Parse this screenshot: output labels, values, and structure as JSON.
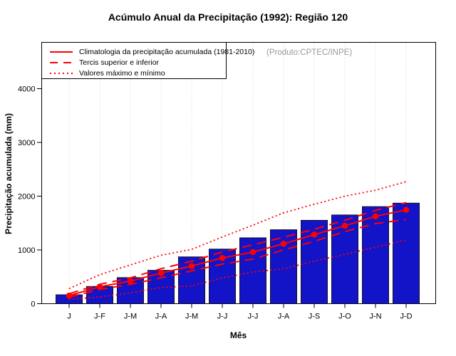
{
  "title": "Acúmulo Anual da Precipitação (1992): Região 120",
  "watermark": "(Produto:CPTEC/INPE)",
  "legend": {
    "items": [
      {
        "label": "Climatologia da precipitação acumulada (1981-2010)",
        "style": "solid"
      },
      {
        "label": "Tercis superior e inferior",
        "style": "dashed"
      },
      {
        "label": "Valores máximo e mínimo",
        "style": "dotted"
      }
    ]
  },
  "colors": {
    "bar_fill": "#1313C8",
    "bar_border": "#111122",
    "line_red": "#FF0000",
    "grid": "#D9D9D9",
    "watermark": "#999999",
    "axis": "#000000"
  },
  "chart_data": {
    "type": "bar",
    "title": "Acúmulo Anual da Precipitação (1992): Região 120",
    "xlabel": "Mês",
    "ylabel": "Precipitação acumulada (mm)",
    "categories": [
      "J",
      "J-F",
      "J-M",
      "J-A",
      "J-M",
      "J-J",
      "J-J",
      "J-A",
      "J-S",
      "J-O",
      "J-N",
      "J-D"
    ],
    "yticks": [
      0,
      1000,
      2000,
      3000,
      4000
    ],
    "ylim": [
      0,
      4860
    ],
    "grid": "vertical-dotted",
    "legend_position": "top-left",
    "series": [
      {
        "name": "Precipitação acumulada 1992",
        "type": "bar",
        "values": [
          165,
          320,
          485,
          620,
          870,
          1015,
          1225,
          1375,
          1550,
          1650,
          1805,
          1870
        ]
      },
      {
        "name": "Climatologia da precipitação acumulada (1981-2010)",
        "type": "line-solid-markers",
        "values": [
          150,
          315,
          420,
          570,
          700,
          850,
          960,
          1115,
          1285,
          1450,
          1625,
          1745
        ]
      },
      {
        "name": "Tercil superior",
        "type": "line-dashed",
        "values": [
          185,
          360,
          480,
          650,
          790,
          960,
          1095,
          1235,
          1385,
          1550,
          1735,
          1880
        ]
      },
      {
        "name": "Tercil inferior",
        "type": "line-dashed",
        "values": [
          120,
          265,
          360,
          480,
          610,
          735,
          830,
          1000,
          1160,
          1340,
          1490,
          1565
        ]
      },
      {
        "name": "Valores máximo",
        "type": "line-dotted",
        "values": [
          280,
          540,
          720,
          900,
          1010,
          1240,
          1460,
          1690,
          1850,
          2000,
          2110,
          2270
        ]
      },
      {
        "name": "Valores mínimo",
        "type": "line-dotted",
        "values": [
          80,
          125,
          200,
          300,
          330,
          480,
          590,
          650,
          790,
          920,
          1050,
          1185
        ]
      }
    ]
  }
}
